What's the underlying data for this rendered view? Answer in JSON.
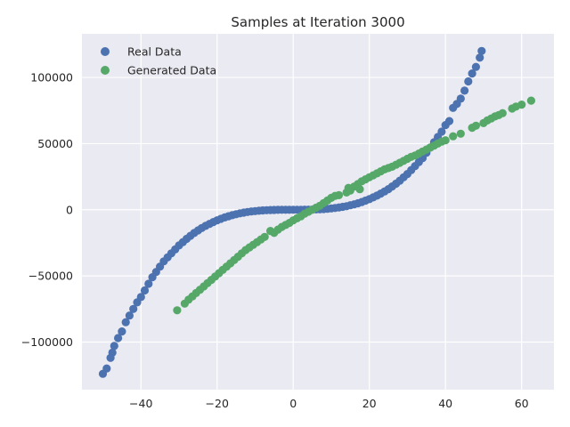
{
  "chart_data": {
    "type": "scatter",
    "title": "Samples at Iteration 3000",
    "xlabel": "",
    "ylabel": "",
    "xlim": [
      -55.5,
      68.5
    ],
    "ylim": [
      -136000,
      133000
    ],
    "xticks": [
      -40,
      -20,
      0,
      20,
      40,
      60
    ],
    "yticks": [
      -100000,
      -50000,
      0,
      50000,
      100000
    ],
    "xtick_labels": [
      "−40",
      "−20",
      "0",
      "20",
      "40",
      "60"
    ],
    "ytick_labels": [
      "−100000",
      "−50000",
      "0",
      "50000",
      "100000"
    ],
    "grid": true,
    "legend": "top-left",
    "background": "#EAEAF2",
    "series": [
      {
        "name": "Real Data",
        "color": "#4C72B0",
        "points": [
          [
            -50,
            -124000
          ],
          [
            -49,
            -120000
          ],
          [
            -48,
            -112000
          ],
          [
            -47.5,
            -108000
          ],
          [
            -47,
            -103000
          ],
          [
            -46,
            -97000
          ],
          [
            -45,
            -92000
          ],
          [
            -44,
            -85000
          ],
          [
            -43,
            -80000
          ],
          [
            -42,
            -75000
          ],
          [
            -41,
            -70000
          ],
          [
            -40,
            -66000
          ],
          [
            -39,
            -61000
          ],
          [
            -38,
            -56000
          ],
          [
            -37,
            -51000
          ],
          [
            -36,
            -47000
          ],
          [
            -35,
            -43000
          ],
          [
            -34,
            -39000
          ],
          [
            -33,
            -36000
          ],
          [
            -32,
            -33000
          ],
          [
            -31,
            -30000
          ],
          [
            -30,
            -27000
          ],
          [
            -29,
            -24500
          ],
          [
            -28,
            -22000
          ],
          [
            -27,
            -19700
          ],
          [
            -26,
            -17600
          ],
          [
            -25,
            -15600
          ],
          [
            -24,
            -13800
          ],
          [
            -23,
            -12200
          ],
          [
            -22,
            -10700
          ],
          [
            -21,
            -9300
          ],
          [
            -20,
            -8000
          ],
          [
            -19,
            -6900
          ],
          [
            -18,
            -5800
          ],
          [
            -17,
            -4900
          ],
          [
            -16,
            -4100
          ],
          [
            -15,
            -3400
          ],
          [
            -14,
            -2700
          ],
          [
            -13,
            -2200
          ],
          [
            -12,
            -1700
          ],
          [
            -11,
            -1300
          ],
          [
            -10,
            -1000
          ],
          [
            -9,
            -730
          ],
          [
            -8,
            -510
          ],
          [
            -7,
            -340
          ],
          [
            -6,
            -220
          ],
          [
            -5,
            -125
          ],
          [
            -4,
            -64
          ],
          [
            -3,
            -27
          ],
          [
            -2,
            -8
          ],
          [
            -1,
            -1
          ],
          [
            0,
            0
          ],
          [
            1,
            1
          ],
          [
            2,
            8
          ],
          [
            3,
            27
          ],
          [
            4,
            64
          ],
          [
            5,
            125
          ],
          [
            6,
            220
          ],
          [
            7,
            340
          ],
          [
            8,
            510
          ],
          [
            9,
            730
          ],
          [
            10,
            1000
          ],
          [
            11,
            1300
          ],
          [
            12,
            1700
          ],
          [
            13,
            2200
          ],
          [
            14,
            2700
          ],
          [
            15,
            3400
          ],
          [
            16,
            4100
          ],
          [
            17,
            4900
          ],
          [
            18,
            5800
          ],
          [
            19,
            6900
          ],
          [
            20,
            8000
          ],
          [
            21,
            9300
          ],
          [
            22,
            10700
          ],
          [
            23,
            12200
          ],
          [
            24,
            13800
          ],
          [
            25,
            15600
          ],
          [
            26,
            17600
          ],
          [
            27,
            19700
          ],
          [
            28,
            22000
          ],
          [
            29,
            24500
          ],
          [
            30,
            27000
          ],
          [
            31,
            30000
          ],
          [
            32,
            33000
          ],
          [
            33,
            36000
          ],
          [
            34,
            39000
          ],
          [
            35,
            43000
          ],
          [
            36,
            47000
          ],
          [
            37,
            51000
          ],
          [
            38,
            55000
          ],
          [
            39,
            59000
          ],
          [
            40,
            64000
          ],
          [
            41,
            67000
          ],
          [
            42,
            77000
          ],
          [
            43,
            80000
          ],
          [
            44,
            84000
          ],
          [
            45,
            90000
          ],
          [
            46,
            97000
          ],
          [
            47,
            103000
          ],
          [
            48,
            108000
          ],
          [
            49,
            115000
          ],
          [
            49.5,
            120000
          ]
        ]
      },
      {
        "name": "Generated Data",
        "color": "#55A868",
        "points": [
          [
            -30.5,
            -76000
          ],
          [
            -28.5,
            -71000
          ],
          [
            -27.5,
            -68000
          ],
          [
            -26.5,
            -65500
          ],
          [
            -25.5,
            -63000
          ],
          [
            -24.5,
            -60500
          ],
          [
            -23.5,
            -58000
          ],
          [
            -22.5,
            -55500
          ],
          [
            -21.5,
            -53000
          ],
          [
            -20.5,
            -50500
          ],
          [
            -19.5,
            -48000
          ],
          [
            -18.5,
            -45500
          ],
          [
            -17.5,
            -43000
          ],
          [
            -16.5,
            -40500
          ],
          [
            -15.5,
            -38000
          ],
          [
            -14.5,
            -35500
          ],
          [
            -13.5,
            -33000
          ],
          [
            -12.5,
            -30500
          ],
          [
            -11.5,
            -28500
          ],
          [
            -10.5,
            -26500
          ],
          [
            -9.5,
            -24500
          ],
          [
            -8.5,
            -22500
          ],
          [
            -7.5,
            -20500
          ],
          [
            -6,
            -16000
          ],
          [
            -5,
            -17500
          ],
          [
            -4,
            -15000
          ],
          [
            -3,
            -13000
          ],
          [
            -2,
            -11500
          ],
          [
            -1,
            -10000
          ],
          [
            0,
            -8000
          ],
          [
            1,
            -6500
          ],
          [
            2,
            -5000
          ],
          [
            3,
            -3000
          ],
          [
            4,
            -1500
          ],
          [
            5,
            0
          ],
          [
            6,
            1500
          ],
          [
            7,
            3000
          ],
          [
            8,
            5000
          ],
          [
            9,
            7000
          ],
          [
            10,
            9000
          ],
          [
            11,
            10500
          ],
          [
            12,
            11000
          ],
          [
            14,
            13000
          ],
          [
            14.5,
            16500
          ],
          [
            15,
            14500
          ],
          [
            16,
            17500
          ],
          [
            17,
            19500
          ],
          [
            17.5,
            15500
          ],
          [
            18,
            21500
          ],
          [
            19,
            23000
          ],
          [
            20,
            24500
          ],
          [
            21,
            26000
          ],
          [
            22,
            27500
          ],
          [
            23,
            29000
          ],
          [
            24,
            30500
          ],
          [
            25,
            31500
          ],
          [
            26,
            32500
          ],
          [
            27,
            34000
          ],
          [
            28,
            35500
          ],
          [
            29,
            37000
          ],
          [
            30,
            38500
          ],
          [
            31,
            40000
          ],
          [
            32,
            41000
          ],
          [
            33,
            42500
          ],
          [
            34,
            44000
          ],
          [
            35,
            45500
          ],
          [
            36,
            47000
          ],
          [
            37,
            48500
          ],
          [
            38,
            50000
          ],
          [
            39,
            51500
          ],
          [
            40,
            52500
          ],
          [
            42,
            55500
          ],
          [
            44,
            57500
          ],
          [
            47,
            62000
          ],
          [
            48,
            63500
          ],
          [
            50,
            65500
          ],
          [
            51,
            67500
          ],
          [
            52,
            69000
          ],
          [
            53,
            70500
          ],
          [
            54,
            71500
          ],
          [
            55,
            73000
          ],
          [
            57.5,
            76500
          ],
          [
            58.5,
            78000
          ],
          [
            60,
            79500
          ],
          [
            62.5,
            82500
          ]
        ]
      }
    ]
  }
}
